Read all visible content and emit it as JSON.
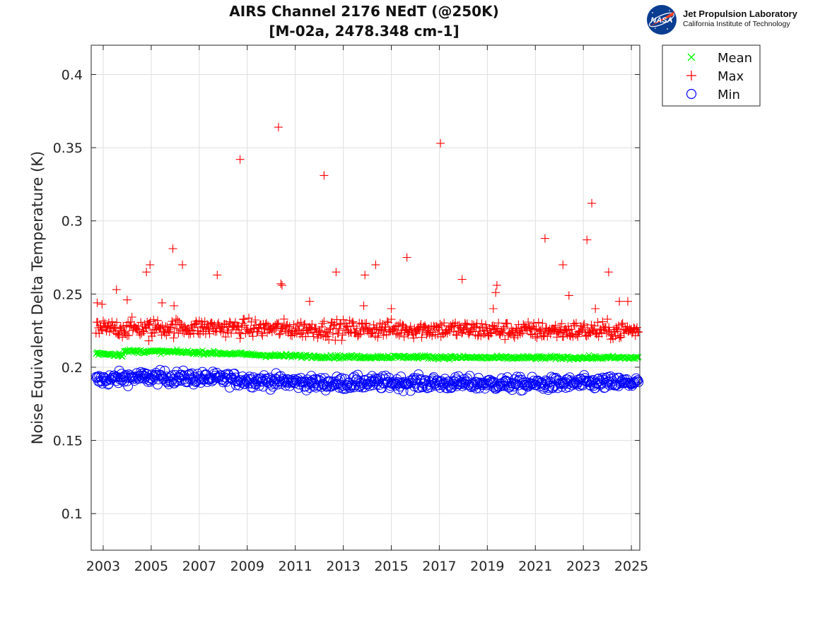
{
  "title": {
    "line1": "AIRS Channel 2176 NEdT (@250K)",
    "line2": "[M-02a, 2478.348 cm-1]"
  },
  "logo": {
    "nasa_text": "NASA",
    "org_name": "Jet Propulsion Laboratory",
    "org_sub": "California Institute of Technology"
  },
  "chart_data": {
    "type": "scatter",
    "title": "AIRS Channel 2176 NEdT (@250K) [M-02a, 2478.348 cm-1]",
    "xlabel": "",
    "ylabel": "Noise Equivalent Delta Temperature (K)",
    "xlim": [
      2002.5,
      2025.35
    ],
    "ylim": [
      0.075,
      0.42
    ],
    "x_ticks": [
      2003,
      2005,
      2007,
      2009,
      2011,
      2013,
      2015,
      2017,
      2019,
      2021,
      2023,
      2025
    ],
    "x_tick_labels": [
      "2003",
      "2005",
      "2007",
      "2009",
      "2011",
      "2013",
      "2015",
      "2017",
      "2019",
      "2021",
      "2023",
      "2025"
    ],
    "y_ticks": [
      0.1,
      0.15,
      0.2,
      0.25,
      0.3,
      0.35,
      0.4
    ],
    "y_tick_labels": [
      "0.1",
      "0.15",
      "0.2",
      "0.25",
      "0.3",
      "0.35",
      "0.4"
    ],
    "grid": true,
    "legend_position": "outside-top-right",
    "series": [
      {
        "name": "Mean",
        "marker": "x",
        "color": "#00ff00",
        "trend": [
          [
            2002.7,
            0.2095
          ],
          [
            2003.8,
            0.2085
          ],
          [
            2003.9,
            0.211
          ],
          [
            2006.0,
            0.2105
          ],
          [
            2008.0,
            0.2095
          ],
          [
            2010.0,
            0.208
          ],
          [
            2013.0,
            0.207
          ],
          [
            2016.0,
            0.207
          ],
          [
            2019.0,
            0.2065
          ],
          [
            2022.0,
            0.2065
          ],
          [
            2025.3,
            0.2065
          ]
        ],
        "spread": 0.0012
      },
      {
        "name": "Max",
        "marker": "+",
        "color": "#ff0000",
        "trend": [
          [
            2002.7,
            0.226
          ],
          [
            2005.0,
            0.227
          ],
          [
            2008.0,
            0.227
          ],
          [
            2011.0,
            0.226
          ],
          [
            2014.0,
            0.226
          ],
          [
            2017.0,
            0.226
          ],
          [
            2020.0,
            0.225
          ],
          [
            2023.0,
            0.225
          ],
          [
            2025.3,
            0.225
          ]
        ],
        "spread": 0.006,
        "outliers": [
          [
            2002.75,
            0.244
          ],
          [
            2002.95,
            0.243
          ],
          [
            2003.55,
            0.253
          ],
          [
            2004.0,
            0.246
          ],
          [
            2004.8,
            0.265
          ],
          [
            2004.9,
            0.218
          ],
          [
            2004.95,
            0.27
          ],
          [
            2005.45,
            0.244
          ],
          [
            2005.9,
            0.281
          ],
          [
            2005.95,
            0.242
          ],
          [
            2006.3,
            0.27
          ],
          [
            2007.75,
            0.263
          ],
          [
            2008.7,
            0.342
          ],
          [
            2010.3,
            0.364
          ],
          [
            2010.4,
            0.257
          ],
          [
            2010.45,
            0.256
          ],
          [
            2011.6,
            0.245
          ],
          [
            2012.2,
            0.331
          ],
          [
            2012.7,
            0.265
          ],
          [
            2013.85,
            0.242
          ],
          [
            2013.9,
            0.263
          ],
          [
            2014.35,
            0.27
          ],
          [
            2015.0,
            0.24
          ],
          [
            2015.65,
            0.275
          ],
          [
            2017.05,
            0.353
          ],
          [
            2017.95,
            0.26
          ],
          [
            2019.25,
            0.24
          ],
          [
            2019.35,
            0.251
          ],
          [
            2019.4,
            0.256
          ],
          [
            2021.4,
            0.288
          ],
          [
            2022.15,
            0.27
          ],
          [
            2022.4,
            0.249
          ],
          [
            2023.15,
            0.287
          ],
          [
            2023.35,
            0.312
          ],
          [
            2023.5,
            0.24
          ],
          [
            2024.05,
            0.265
          ],
          [
            2024.5,
            0.245
          ],
          [
            2024.85,
            0.245
          ]
        ]
      },
      {
        "name": "Min",
        "marker": "o",
        "color": "#0000ff",
        "trend": [
          [
            2002.7,
            0.191
          ],
          [
            2004.0,
            0.193
          ],
          [
            2006.0,
            0.193
          ],
          [
            2008.0,
            0.192
          ],
          [
            2010.0,
            0.1905
          ],
          [
            2012.0,
            0.189
          ],
          [
            2015.0,
            0.1895
          ],
          [
            2018.0,
            0.189
          ],
          [
            2021.0,
            0.1885
          ],
          [
            2023.0,
            0.189
          ],
          [
            2025.3,
            0.1895
          ]
        ],
        "spread": 0.0045
      }
    ]
  }
}
